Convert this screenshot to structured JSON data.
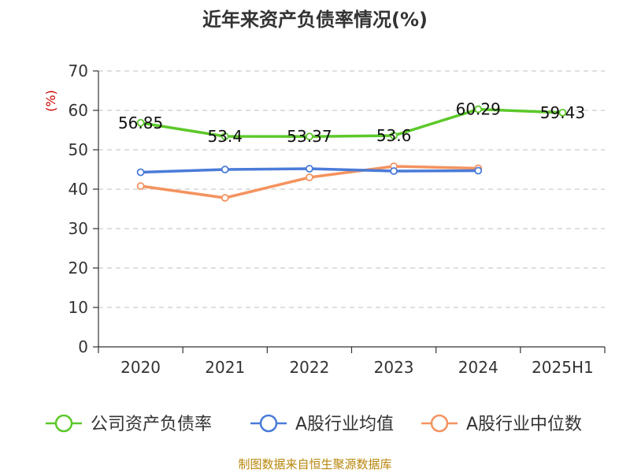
{
  "chart_data": {
    "type": "line",
    "title": "近年来资产负债率情况(%)",
    "ylabel": "(%)",
    "xlabel": "",
    "ylim": [
      0,
      70
    ],
    "yticks": [
      0,
      10,
      20,
      30,
      40,
      50,
      60,
      70
    ],
    "categories": [
      "2020",
      "2021",
      "2022",
      "2023",
      "2024",
      "2025H1"
    ],
    "grid": true,
    "legend_position": "bottom",
    "series": [
      {
        "name": "公司资产负债率",
        "color": "#5cc82a",
        "values": [
          56.85,
          53.4,
          53.37,
          53.6,
          60.29,
          59.43
        ],
        "labels": [
          "56.85",
          "53.4",
          "53.37",
          "53.6",
          "60.29",
          "59.43"
        ]
      },
      {
        "name": "A股行业均值",
        "color": "#4a7bd8",
        "values": [
          44.3,
          45.0,
          45.2,
          44.6,
          44.7,
          null
        ]
      },
      {
        "name": "A股行业中位数",
        "color": "#f4935f",
        "values": [
          40.8,
          37.8,
          43.0,
          45.8,
          45.3,
          null
        ]
      }
    ]
  },
  "source": "制图数据来自恒生聚源数据库"
}
